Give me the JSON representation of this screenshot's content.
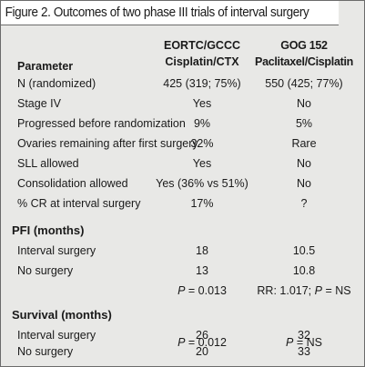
{
  "title": "Figure 2. Outcomes of two phase III trials of interval surgery",
  "columns": {
    "param": "Parameter",
    "a_line1": "EORTC/GCCC",
    "a_line2": "Cisplatin/CTX",
    "b_line1": "GOG 152",
    "b_line2": "Paclitaxel/Cisplatin"
  },
  "rows": [
    {
      "label": "N (randomized)",
      "a": "425 (319; 75%)",
      "b": "550 (425; 77%)"
    },
    {
      "label": "Stage IV",
      "a": "Yes",
      "b": "No"
    },
    {
      "label": "Progressed before randomization",
      "a": "9%",
      "b": "5%"
    },
    {
      "label": "Ovaries remaining after first surgery",
      "a": "32%",
      "b": "Rare"
    },
    {
      "label": "SLL allowed",
      "a": "Yes",
      "b": "No"
    },
    {
      "label": "Consolidation allowed",
      "a": "Yes (36% vs 51%)",
      "b": "No"
    },
    {
      "label": "% CR at interval surgery",
      "a": "17%",
      "b": "?"
    }
  ],
  "pfi": {
    "heading": "PFI (months)",
    "rows": [
      {
        "label": "Interval surgery",
        "a": "18",
        "b": "10.5"
      },
      {
        "label": "No surgery",
        "a": "13",
        "b": "10.8"
      }
    ],
    "pval_a_sym": "P",
    "pval_a_val": " = 0.013",
    "pval_b_pre": "RR: 1.017; ",
    "pval_b_sym": "P",
    "pval_b_val": " = NS"
  },
  "survival": {
    "heading": "Survival (months)",
    "rows": [
      {
        "label": "Interval surgery",
        "a": "26",
        "b": "32"
      },
      {
        "label": "No surgery",
        "a": "20",
        "b": "33"
      }
    ],
    "pval_a_sym": "P",
    "pval_a_val": " = 0.012",
    "pval_b_sym": "P",
    "pval_b_val": " = NS"
  }
}
